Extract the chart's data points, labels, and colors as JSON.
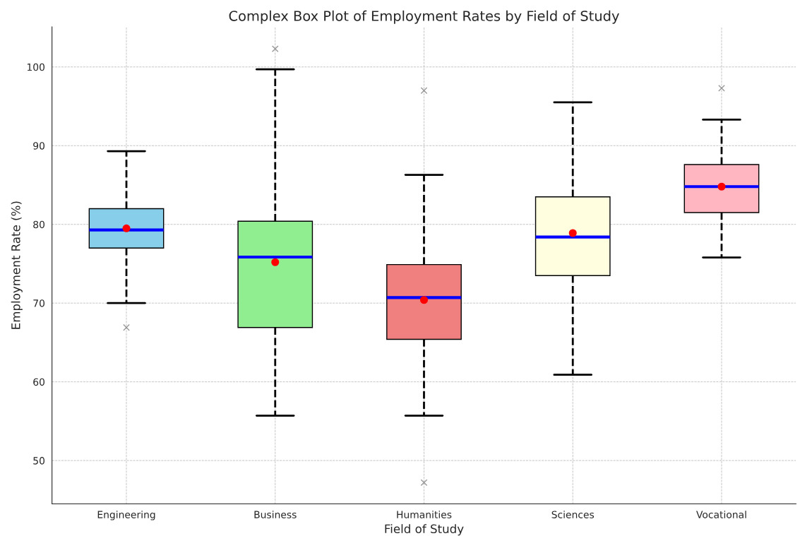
{
  "chart_data": {
    "type": "box",
    "title": "Complex Box Plot of Employment Rates by Field of Study",
    "xlabel": "Field of Study",
    "ylabel": "Employment Rate (%)",
    "categories": [
      "Engineering",
      "Business",
      "Humanities",
      "Sciences",
      "Vocational"
    ],
    "colors": [
      "#87ceeb",
      "#90ee90",
      "#f08080",
      "#ffffe0",
      "#ffb6c1"
    ],
    "boxes": [
      {
        "low": 70.0,
        "q1": 77.0,
        "median": 79.3,
        "q3": 82.0,
        "high": 89.3,
        "mean": 79.5,
        "outliers": [
          66.9
        ]
      },
      {
        "low": 55.7,
        "q1": 66.9,
        "median": 75.85,
        "q3": 80.4,
        "high": 99.7,
        "mean": 75.2,
        "outliers": [
          102.3
        ]
      },
      {
        "low": 55.7,
        "q1": 65.4,
        "median": 70.7,
        "q3": 74.9,
        "high": 86.3,
        "mean": 70.4,
        "outliers": [
          97.0,
          47.2
        ]
      },
      {
        "low": 60.9,
        "q1": 73.5,
        "median": 78.4,
        "q3": 83.5,
        "high": 95.5,
        "mean": 78.9
      },
      {
        "low": 75.8,
        "q1": 81.5,
        "median": 84.8,
        "q3": 87.6,
        "high": 93.3,
        "mean": 84.8,
        "outliers": [
          97.3
        ]
      }
    ],
    "ylim": [
      44.5,
      105.1
    ],
    "yticks": [
      50,
      60,
      70,
      80,
      90,
      100
    ],
    "grid": true
  }
}
